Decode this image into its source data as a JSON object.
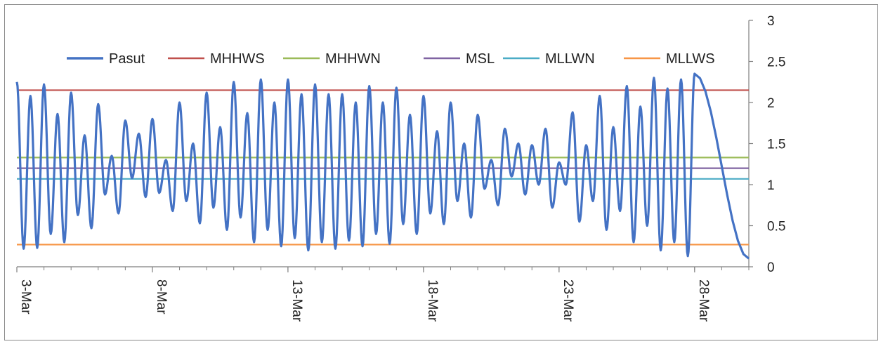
{
  "chart_data": {
    "type": "line",
    "title": "",
    "xlabel": "",
    "ylabel": "",
    "x_tick_labels": [
      "3-Mar",
      "8-Mar",
      "13-Mar",
      "18-Mar",
      "23-Mar",
      "28-Mar"
    ],
    "x_range_days": [
      3,
      30
    ],
    "ylim": [
      0,
      3
    ],
    "y_ticks": [
      0,
      0.5,
      1,
      1.5,
      2,
      2.5,
      3
    ],
    "y_tick_labels": [
      "0",
      "0.5",
      "1",
      "1.5",
      "2",
      "2.5",
      "3"
    ],
    "y_axis_side": "right",
    "grid": false,
    "legend_position": "top",
    "series": [
      {
        "name": "Pasut",
        "color": "#4472C4",
        "kind": "semidiurnal-tide",
        "x_step_days": 0.5,
        "x_start_day": 3,
        "highs": [
          2.25,
          2.08,
          2.22,
          1.86,
          2.12,
          1.6,
          1.98,
          1.35,
          1.78,
          1.62,
          1.8,
          1.3,
          2.0,
          1.5,
          2.12,
          1.7,
          2.25,
          1.87,
          2.28,
          2.0,
          2.28,
          2.1,
          2.22,
          2.1,
          2.1,
          2.0,
          2.2,
          2.0,
          2.18,
          1.85,
          2.08,
          1.65,
          2.0,
          1.5,
          1.85,
          1.3,
          1.68,
          1.5,
          1.48,
          1.68,
          1.27,
          1.88,
          1.48,
          2.08,
          1.7,
          2.2,
          1.95,
          2.3,
          2.17,
          2.28,
          2.35
        ],
        "lows": [
          0.22,
          0.23,
          0.4,
          0.3,
          0.63,
          0.47,
          0.88,
          0.65,
          1.08,
          0.85,
          0.9,
          0.68,
          0.8,
          0.53,
          0.72,
          0.45,
          0.6,
          0.3,
          0.45,
          0.25,
          0.35,
          0.2,
          0.3,
          0.22,
          0.32,
          0.25,
          0.4,
          0.28,
          0.52,
          0.4,
          0.65,
          0.52,
          0.8,
          0.6,
          0.95,
          0.75,
          1.1,
          0.88,
          1.0,
          0.72,
          1.0,
          0.55,
          0.8,
          0.45,
          0.68,
          0.3,
          0.5,
          0.2,
          0.3,
          0.13,
          0.1
        ]
      },
      {
        "name": "MHHWS",
        "color": "#C0504D",
        "value": 2.15
      },
      {
        "name": "MHHWN",
        "color": "#9BBB59",
        "value": 1.33
      },
      {
        "name": "MSL",
        "color": "#8064A2",
        "value": 1.2
      },
      {
        "name": "MLLWN",
        "color": "#4BACC6",
        "value": 1.07
      },
      {
        "name": "MLLWS",
        "color": "#F79646",
        "value": 0.27
      }
    ]
  }
}
